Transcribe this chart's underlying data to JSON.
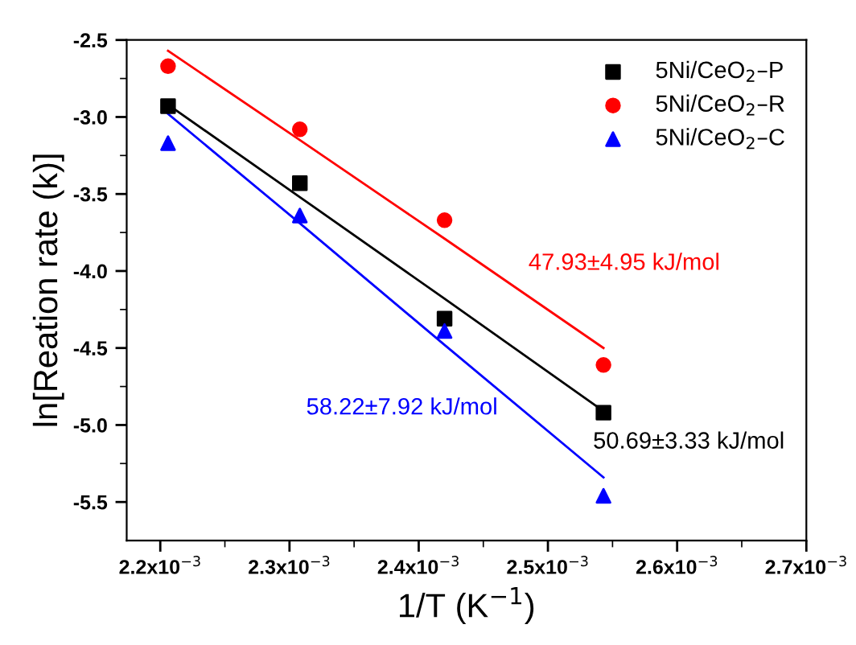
{
  "chart_data": {
    "type": "scatter",
    "xlabel": "1/T (K$^{−1}$)",
    "ylabel": "ln[Reation rate (k)]",
    "xlim": [
      0.002174,
      0.0027
    ],
    "ylim": [
      -5.75,
      -2.5
    ],
    "xticks": [
      {
        "value": 0.0022,
        "label": "2.2x10$^{−3}$"
      },
      {
        "value": 0.0023,
        "label": "2.3x10$^{−3}$"
      },
      {
        "value": 0.0024,
        "label": "2.4x10$^{−3}$"
      },
      {
        "value": 0.0025,
        "label": "2.5x10$^{−3}$"
      },
      {
        "value": 0.0026,
        "label": "2.6x10$^{−3}$"
      },
      {
        "value": 0.0027,
        "label": "2.7x10$^{−3}$"
      }
    ],
    "yticks": [
      {
        "value": -2.5,
        "label": "-2.5"
      },
      {
        "value": -3.0,
        "label": "-3.0"
      },
      {
        "value": -3.5,
        "label": "-3.5"
      },
      {
        "value": -4.0,
        "label": "-4.0"
      },
      {
        "value": -4.5,
        "label": "-4.5"
      },
      {
        "value": -5.0,
        "label": "-5.0"
      },
      {
        "value": -5.5,
        "label": "-5.5"
      }
    ],
    "x": [
      0.002206,
      0.002308,
      0.00242,
      0.002543
    ],
    "series": [
      {
        "name": "5Ni/CeO$_{2}$–P",
        "color": "#000000",
        "marker": "square",
        "values": [
          -2.93,
          -3.43,
          -4.31,
          -4.92
        ]
      },
      {
        "name": "5Ni/CeO$_{2}$–R",
        "color": "#ff0000",
        "marker": "circle",
        "values": [
          -2.67,
          -3.08,
          -3.67,
          -4.61
        ]
      },
      {
        "name": "5Ni/CeO$_{2}$–C",
        "color": "#0000ff",
        "marker": "triangle",
        "values": [
          -3.17,
          -3.64,
          -4.39,
          -5.46
        ]
      },
      {
        "type": "line",
        "color": "#000000",
        "values": [
          -2.92,
          -3.52,
          -4.18,
          -4.91
        ]
      },
      {
        "type": "line",
        "color": "#ff0000",
        "values": [
          -2.57,
          -3.15,
          -3.79,
          -4.5
        ]
      },
      {
        "type": "line",
        "color": "#0000ff",
        "values": [
          -2.98,
          -3.69,
          -4.48,
          -5.34
        ]
      }
    ],
    "annotations": [
      "50.69±3.33 kJ/mol",
      "47.93±4.95 kJ/mol",
      "58.22±7.92 kJ/mol"
    ],
    "legend": "top right",
    "grid": false
  }
}
